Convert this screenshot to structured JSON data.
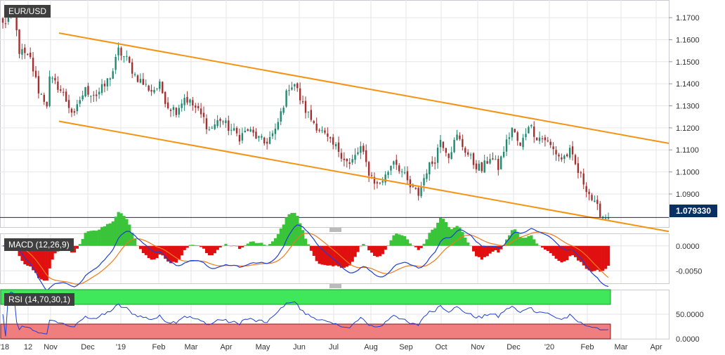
{
  "chart_data": [
    {
      "type": "candlestick",
      "title": "EUR/USD",
      "last_price": "1.079330",
      "ylim": [
        1.075,
        1.178
      ],
      "y_ticks": [
        "1.1700",
        "1.1600",
        "1.1500",
        "1.1400",
        "1.1300",
        "1.1200",
        "1.1100",
        "1.1000",
        "1.0900"
      ],
      "x_ticks": [
        "'18",
        "12",
        "Nov",
        "Dec",
        "'19",
        "Feb",
        "Mar",
        "Apr",
        "May",
        "Jun",
        "Jul",
        "Aug",
        "Sep",
        "Oct",
        "Nov",
        "Dec",
        "'20",
        "Feb",
        "Mar",
        "Apr"
      ],
      "close_path": [
        [
          0,
          1.167
        ],
        [
          4,
          1.172
        ],
        [
          6,
          1.155
        ],
        [
          10,
          1.151
        ],
        [
          13,
          1.137
        ],
        [
          16,
          1.131
        ],
        [
          17,
          1.142
        ],
        [
          20,
          1.139
        ],
        [
          22,
          1.135
        ],
        [
          26,
          1.125
        ],
        [
          28,
          1.133
        ],
        [
          30,
          1.137
        ],
        [
          34,
          1.135
        ],
        [
          37,
          1.139
        ],
        [
          40,
          1.146
        ],
        [
          42,
          1.155
        ],
        [
          45,
          1.151
        ],
        [
          48,
          1.144
        ],
        [
          51,
          1.14
        ],
        [
          54,
          1.137
        ],
        [
          57,
          1.139
        ],
        [
          60,
          1.13
        ],
        [
          63,
          1.128
        ],
        [
          66,
          1.134
        ],
        [
          70,
          1.129
        ],
        [
          73,
          1.124
        ],
        [
          75,
          1.119
        ],
        [
          79,
          1.124
        ],
        [
          82,
          1.12
        ],
        [
          86,
          1.116
        ],
        [
          89,
          1.119
        ],
        [
          92,
          1.116
        ],
        [
          95,
          1.113
        ],
        [
          99,
          1.118
        ],
        [
          102,
          1.131
        ],
        [
          104,
          1.139
        ],
        [
          106,
          1.14
        ],
        [
          109,
          1.13
        ],
        [
          112,
          1.124
        ],
        [
          116,
          1.118
        ],
        [
          119,
          1.113
        ],
        [
          122,
          1.11
        ],
        [
          126,
          1.103
        ],
        [
          130,
          1.111
        ],
        [
          133,
          1.1
        ],
        [
          136,
          1.094
        ],
        [
          139,
          1.098
        ],
        [
          142,
          1.106
        ],
        [
          145,
          1.1
        ],
        [
          148,
          1.093
        ],
        [
          151,
          1.09
        ],
        [
          154,
          1.101
        ],
        [
          157,
          1.106
        ],
        [
          159,
          1.115
        ],
        [
          162,
          1.108
        ],
        [
          165,
          1.116
        ],
        [
          168,
          1.11
        ],
        [
          171,
          1.104
        ],
        [
          174,
          1.101
        ],
        [
          177,
          1.107
        ],
        [
          180,
          1.102
        ],
        [
          182,
          1.11
        ],
        [
          185,
          1.12
        ],
        [
          188,
          1.111
        ],
        [
          191,
          1.122
        ],
        [
          194,
          1.116
        ],
        [
          197,
          1.115
        ],
        [
          200,
          1.11
        ],
        [
          203,
          1.106
        ],
        [
          206,
          1.109
        ],
        [
          209,
          1.1
        ],
        [
          212,
          1.093
        ],
        [
          215,
          1.085
        ],
        [
          218,
          1.08
        ],
        [
          220,
          1.0793
        ]
      ],
      "channel_upper": {
        "from": [
          "Oct 2018",
          1.163
        ],
        "to": [
          "Apr 2020",
          1.113
        ]
      },
      "channel_lower": {
        "from": [
          "Oct 2018",
          1.123
        ],
        "to": [
          "Apr 2020",
          1.073
        ]
      }
    },
    {
      "type": "macd",
      "title": "MACD (12,26,9)",
      "params": [
        12,
        26,
        9
      ],
      "ylim": [
        -0.0075,
        0.0025
      ],
      "y_ticks": [
        "0.0000",
        "-0.0050"
      ],
      "colors": {
        "macd": "#1e3fd4",
        "signal": "#f07a1a",
        "hist_pos": "#3ac43a",
        "hist_neg": "#e01010"
      }
    },
    {
      "type": "rsi",
      "title": "RSI (14,70,30,1)",
      "params": [
        14,
        70,
        30,
        1
      ],
      "ylim": [
        0,
        100
      ],
      "y_ticks": [
        "50.0000",
        "0.0000"
      ],
      "colors": {
        "rsi": "#1e3fd4",
        "overbought_band": "#3ee85a",
        "oversold_band": "#f07e7e"
      }
    }
  ],
  "colors": {
    "up": "#1f8a70",
    "down": "#a33030",
    "channel": "#f59312",
    "price_line": "#0a2f63",
    "grid": "#e6e6ea"
  },
  "labels": {
    "symbol": "EUR/USD",
    "price": "1.079330",
    "macd": "MACD (12,26,9)",
    "rsi": "RSI (14,70,30,1)"
  }
}
